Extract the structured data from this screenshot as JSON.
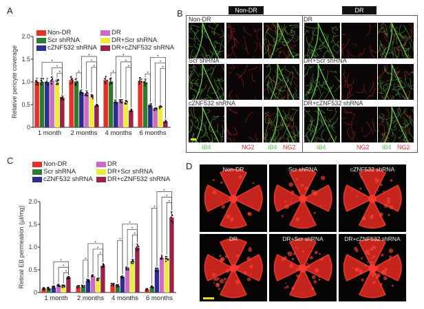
{
  "panels": {
    "a": "A",
    "b": "B",
    "c": "C",
    "d": "D"
  },
  "colors": {
    "non_dr": "#e8302a",
    "scr": "#2f7a30",
    "czn": "#2c2d8c",
    "dr": "#cc6cc0",
    "dr_scr": "#eeea3a",
    "dr_czn": "#9a2446",
    "ib4": "#5cc24a",
    "ng2": "#e03030"
  },
  "legend": [
    {
      "label": "Non-DR",
      "color": "#e8302a"
    },
    {
      "label": "Scr shRNA",
      "color": "#2f7a30"
    },
    {
      "label": "cZNF532 shRNA",
      "color": "#2c2d8c"
    },
    {
      "label": "DR",
      "color": "#cc6cc0"
    },
    {
      "label": "DR+Scr shRNA",
      "color": "#eeea3a"
    },
    {
      "label": "DR+cZNF532 shRNA",
      "color": "#9a2446"
    }
  ],
  "chart_data": [
    {
      "type": "bar",
      "panel": "A",
      "ylabel": "Relative pericyte coverage",
      "xlabel": "",
      "ylim": [
        0,
        2.0
      ],
      "yticks": [
        "0",
        "0.5",
        "1.0",
        "1.5",
        "2.0"
      ],
      "ytick_values": [
        0,
        0.5,
        1.0,
        1.5,
        2.0
      ],
      "categories": [
        "1 month",
        "2 months",
        "4 months",
        "6 months"
      ],
      "series": [
        {
          "name": "Non-DR",
          "values": [
            1.0,
            1.04,
            1.04,
            1.02
          ]
        },
        {
          "name": "Scr shRNA",
          "values": [
            1.0,
            1.0,
            1.01,
            0.99
          ]
        },
        {
          "name": "cZNF532 shRNA",
          "values": [
            1.0,
            0.77,
            0.56,
            0.48
          ]
        },
        {
          "name": "DR",
          "values": [
            1.03,
            0.75,
            0.57,
            0.4
          ]
        },
        {
          "name": "DR+Scr shRNA",
          "values": [
            0.98,
            0.67,
            0.55,
            0.45
          ]
        },
        {
          "name": "DR+cZNF532 shRNA",
          "values": [
            0.65,
            0.47,
            0.37,
            0.13
          ]
        }
      ],
      "significance_marker": "*",
      "comparisons": [
        [
          [
            1,
            5
          ],
          [
            3,
            5
          ],
          [
            4,
            5
          ]
        ],
        [
          [
            1,
            2
          ],
          [
            2,
            5
          ],
          [
            3,
            5
          ],
          [
            4,
            5
          ]
        ],
        [
          [
            1,
            2
          ],
          [
            2,
            5
          ],
          [
            3,
            5
          ],
          [
            4,
            5
          ]
        ],
        [
          [
            1,
            2
          ],
          [
            2,
            5
          ],
          [
            3,
            5
          ],
          [
            4,
            5
          ]
        ]
      ]
    },
    {
      "type": "bar",
      "panel": "C",
      "ylabel": "Retinal EB permeation (µl/mg)",
      "xlabel": "",
      "ylim": [
        0,
        2.0
      ],
      "yticks": [
        "0",
        "0.5",
        "1.0",
        "1.5",
        "2.0"
      ],
      "ytick_values": [
        0,
        0.5,
        1.0,
        1.5,
        2.0
      ],
      "categories": [
        "1 month",
        "2 months",
        "4 months",
        "6 months"
      ],
      "series": [
        {
          "name": "Non-DR",
          "values": [
            0.08,
            0.12,
            0.17,
            0.06
          ]
        },
        {
          "name": "Scr shRNA",
          "values": [
            0.09,
            0.13,
            0.15,
            0.12
          ]
        },
        {
          "name": "cZNF532 shRNA",
          "values": [
            0.11,
            0.26,
            0.34,
            0.5
          ]
        },
        {
          "name": "DR",
          "values": [
            0.16,
            0.37,
            0.52,
            0.77
          ]
        },
        {
          "name": "DR+Scr shRNA",
          "values": [
            0.14,
            0.29,
            0.68,
            0.74
          ]
        },
        {
          "name": "DR+cZNF532 shRNA",
          "values": [
            0.33,
            0.59,
            0.99,
            1.65
          ]
        }
      ],
      "significance_marker": "*",
      "comparisons": [
        [
          [
            2,
            5
          ],
          [
            3,
            5
          ],
          [
            4,
            5
          ]
        ],
        [
          [
            1,
            2
          ],
          [
            2,
            5
          ],
          [
            3,
            5
          ],
          [
            4,
            5
          ]
        ],
        [
          [
            1,
            2
          ],
          [
            2,
            5
          ],
          [
            3,
            5
          ],
          [
            4,
            5
          ]
        ],
        [
          [
            1,
            2
          ],
          [
            2,
            5
          ],
          [
            3,
            5
          ],
          [
            4,
            5
          ]
        ]
      ]
    }
  ],
  "panel_b": {
    "headers": [
      "Non-DR",
      "DR"
    ],
    "left_rows": [
      "Non-DR",
      "Scr shRNA",
      "cZNF532 shRNA"
    ],
    "right_rows": [
      "DR",
      "DR+Scr shRNA",
      "DR+cZNF532 shRNA"
    ],
    "channels": {
      "ib4": "IB4",
      "ng2": "NG2"
    }
  },
  "panel_d": {
    "top": [
      "Non-DR",
      "Scr shRNA",
      "cZNF532 shRNA"
    ],
    "bottom": [
      "DR",
      "DR+Scr shRNA",
      "DR+cZNF532 shRNA"
    ]
  }
}
